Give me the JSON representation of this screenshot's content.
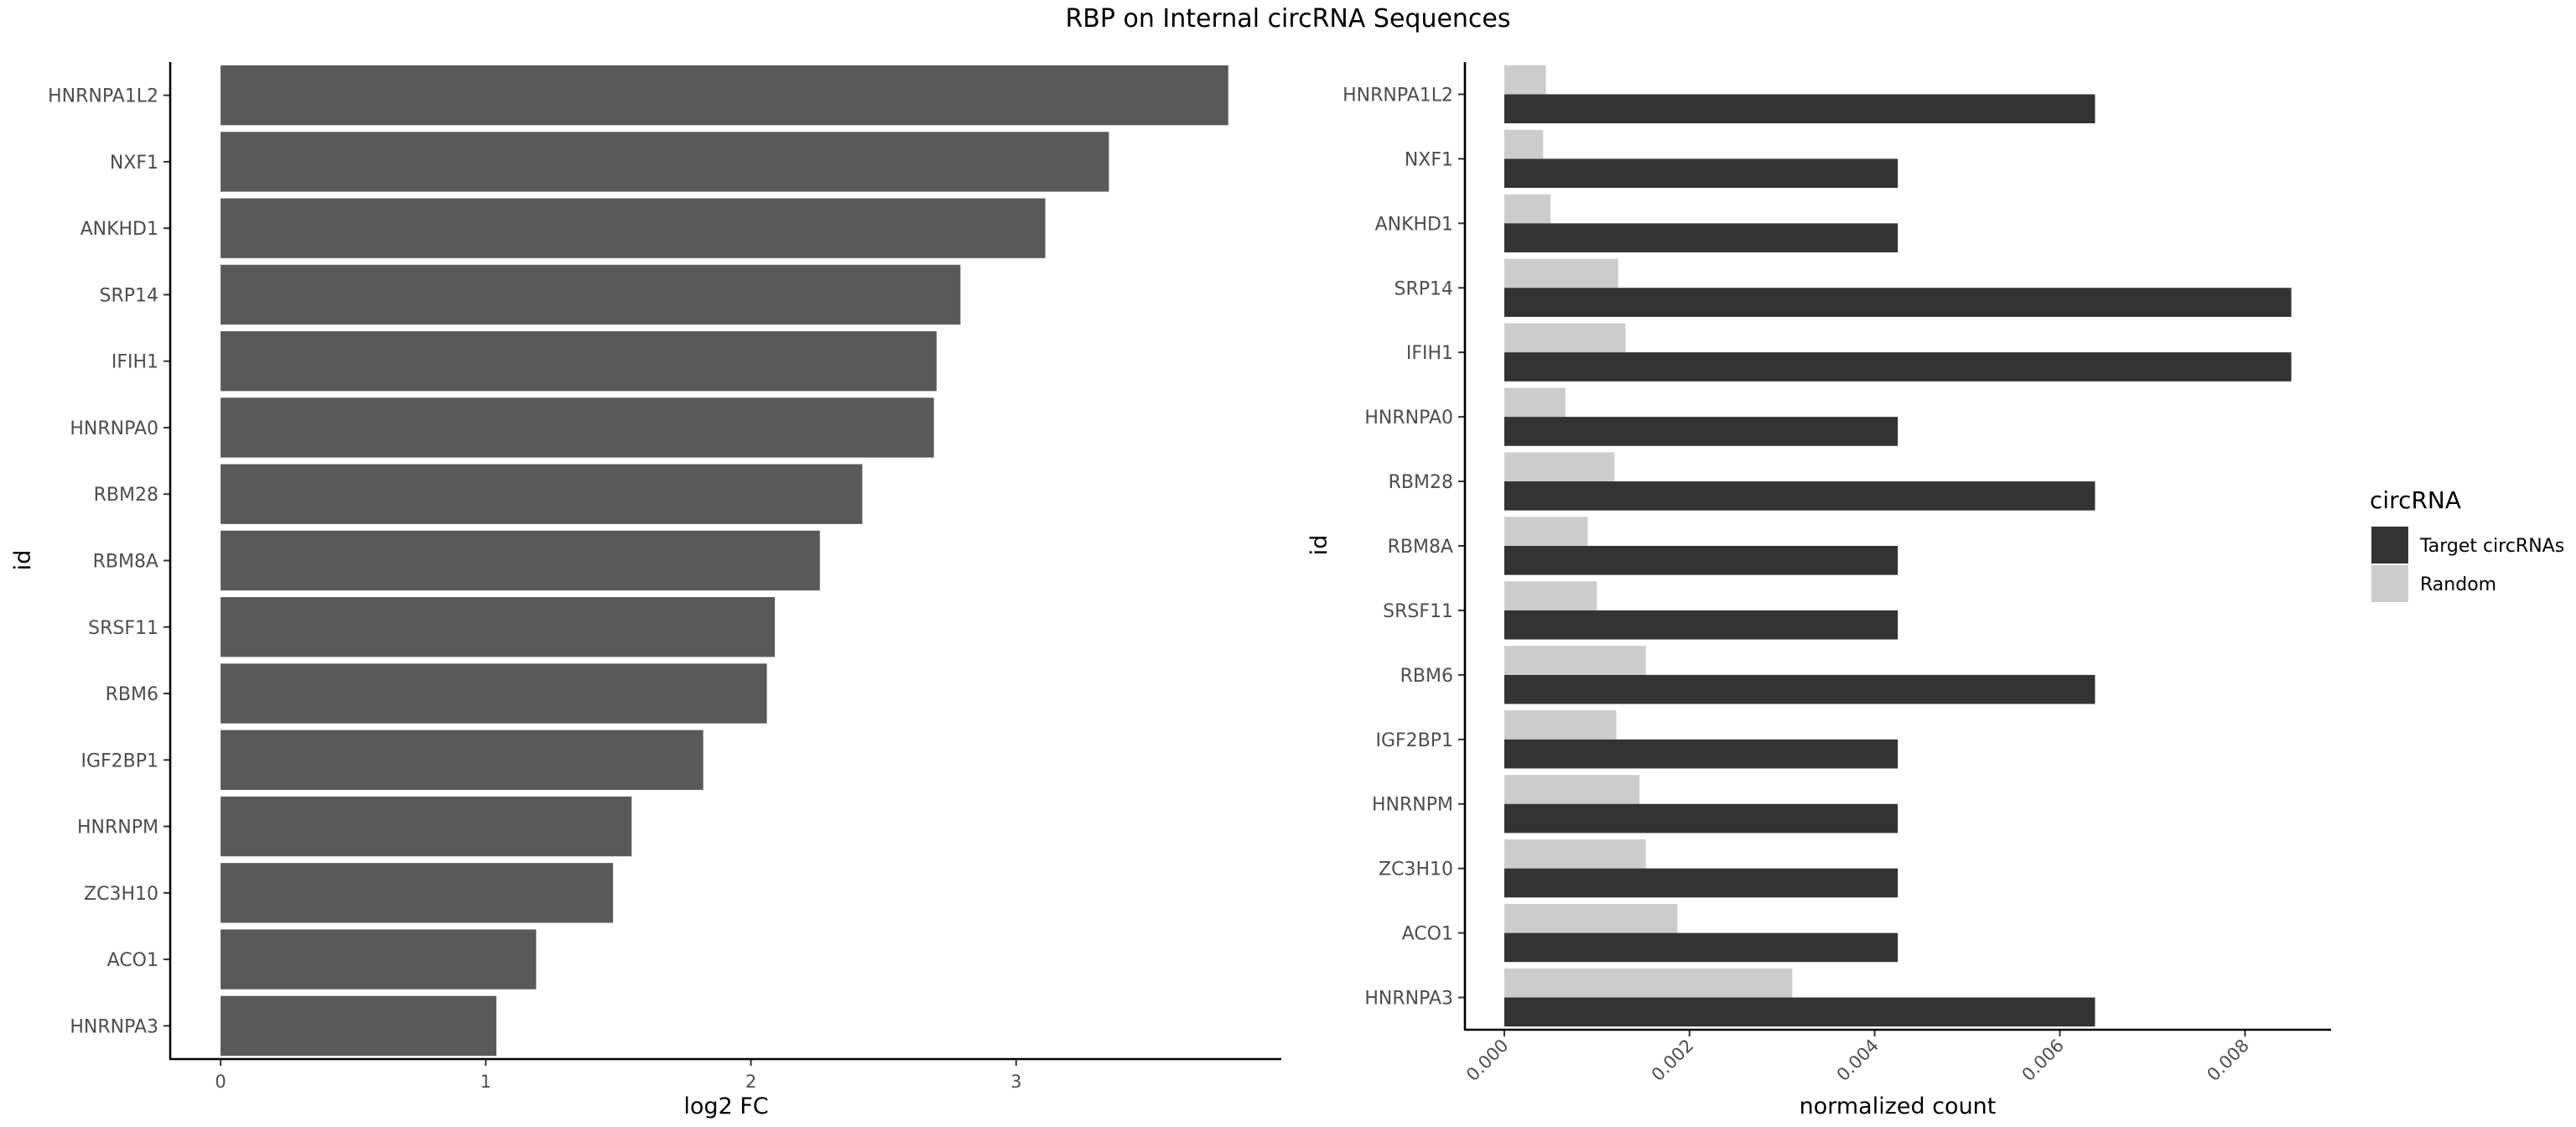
{
  "title": "RBP on Internal circRNA Sequences",
  "chart_data": [
    {
      "type": "bar",
      "orientation": "horizontal",
      "categories": [
        "HNRNPA1L2",
        "NXF1",
        "ANKHD1",
        "SRP14",
        "IFIH1",
        "HNRNPA0",
        "RBM28",
        "RBM8A",
        "SRSF11",
        "RBM6",
        "IGF2BP1",
        "HNRNPM",
        "ZC3H10",
        "ACO1",
        "HNRNPA3"
      ],
      "values": [
        3.8,
        3.35,
        3.11,
        2.79,
        2.7,
        2.69,
        2.42,
        2.26,
        2.09,
        2.06,
        1.82,
        1.55,
        1.48,
        1.19,
        1.04
      ],
      "xlabel": "log2 FC",
      "ylabel": "id",
      "xlim": [
        -0.19,
        4.0
      ],
      "xticks": [
        "0",
        "1",
        "2",
        "3"
      ],
      "color": "#595959",
      "grid": false
    },
    {
      "type": "bar",
      "orientation": "horizontal",
      "categories": [
        "HNRNPA1L2",
        "NXF1",
        "ANKHD1",
        "SRP14",
        "IFIH1",
        "HNRNPA0",
        "RBM28",
        "RBM8A",
        "SRSF11",
        "RBM6",
        "IGF2BP1",
        "HNRNPM",
        "ZC3H10",
        "ACO1",
        "HNRNPA3"
      ],
      "series": [
        {
          "name": "Target circRNAs",
          "color": "#333333",
          "values": [
            0.00638,
            0.00425,
            0.00425,
            0.0085,
            0.0085,
            0.00425,
            0.00638,
            0.00425,
            0.00425,
            0.00638,
            0.00425,
            0.00425,
            0.00425,
            0.00425,
            0.00638
          ]
        },
        {
          "name": "Random",
          "color": "#cccccc",
          "values": [
            0.00045,
            0.00042,
            0.0005,
            0.00123,
            0.00131,
            0.00066,
            0.00119,
            0.0009,
            0.001,
            0.00153,
            0.00121,
            0.00146,
            0.00153,
            0.00187,
            0.00311
          ]
        }
      ],
      "xlabel": "normalized count",
      "ylabel": "id",
      "xlim": [
        -0.000425,
        0.00893
      ],
      "xticks": [
        "0.000",
        "0.002",
        "0.004",
        "0.006",
        "0.008"
      ],
      "legend_title": "circRNA",
      "legend_position": "right",
      "grid": false
    }
  ]
}
